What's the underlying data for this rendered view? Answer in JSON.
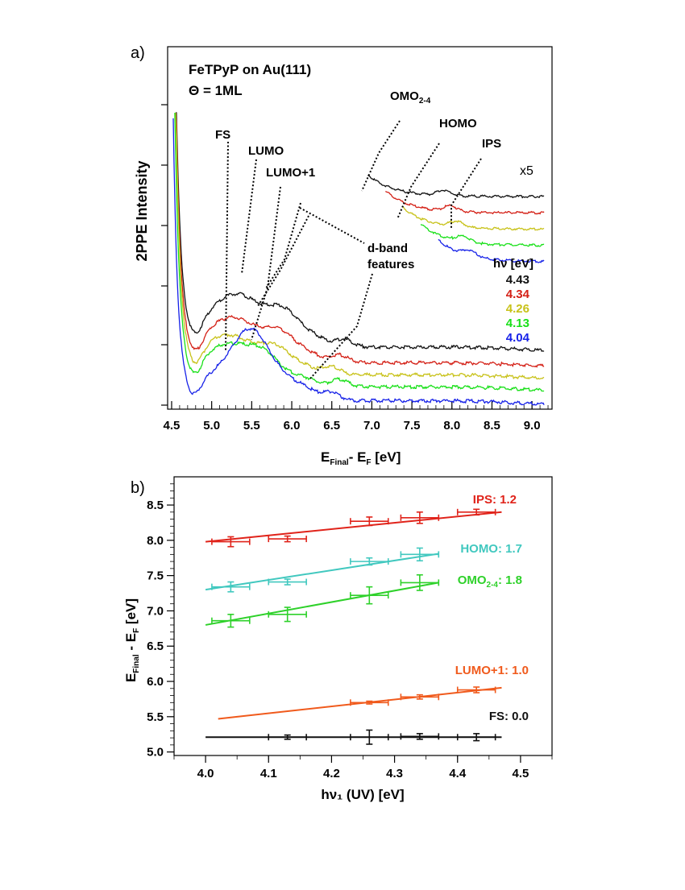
{
  "chart_data": [
    {
      "panel": "a)",
      "type": "line",
      "title": "FeTPyP on Au(111)",
      "subtitle": "Θ = 1ML",
      "xlabel_main": "E",
      "xlabel_sub1": "Final",
      "xlabel_mid": "- E",
      "xlabel_sub2": "F",
      "xlabel_tail": " [eV]",
      "ylabel": "2PPE Intensity",
      "xlim": [
        4.45,
        9.25
      ],
      "x_ticks": [
        "4.5",
        "5.0",
        "5.5",
        "6.0",
        "6.5",
        "7.0",
        "7.5",
        "8.0",
        "8.5",
        "9.0"
      ],
      "legend_title": "hν [eV]",
      "scale_label": "x5",
      "series": [
        {
          "name": "4.43",
          "color": "#111111",
          "offset": 4.8,
          "amp": 1.0,
          "cutoff": 4.55,
          "fs": 5.3,
          "lumo": 5.9,
          "dband": 6.35,
          "step": 6.4,
          "tail_end": 9.15
        },
        {
          "name": "4.34",
          "color": "#d42016",
          "offset": 3.5,
          "amp": 0.85,
          "cutoff": 4.55,
          "fs": 5.25,
          "lumo": 5.85,
          "dband": 6.3,
          "step": 6.35,
          "tail_end": 9.15
        },
        {
          "name": "4.26",
          "color": "#c8c21a",
          "offset": 2.5,
          "amp": 0.75,
          "cutoff": 4.55,
          "fs": 5.2,
          "lumo": 5.8,
          "dband": 6.2,
          "step": 6.3,
          "tail_end": 9.15
        },
        {
          "name": "4.13",
          "color": "#19e019",
          "offset": 1.5,
          "amp": 0.8,
          "cutoff": 4.54,
          "fs": 5.2,
          "lumo": 5.65,
          "dband": 6.3,
          "step": 6.3,
          "tail_end": 9.15
        },
        {
          "name": "4.04",
          "color": "#1722e8",
          "offset": 0.35,
          "amp": 1.0,
          "cutoff": 4.52,
          "fs": 5.45,
          "lumo": 5.5,
          "dband": 6.2,
          "step": 6.3,
          "tail_end": 9.15
        }
      ],
      "annotations": {
        "fs": "FS",
        "lumo": "LUMO",
        "lumo1": "LUMO+1",
        "omo_main": "OMO",
        "omo_sub": "2-4",
        "homo": "HOMO",
        "ips": "IPS",
        "dband_line1": "d-band",
        "dband_line2": "features"
      }
    },
    {
      "panel": "b)",
      "type": "scatter",
      "xlabel": "hν₁ (UV) [eV]",
      "ylabel_main": "E",
      "ylabel_sub1": "Final",
      "ylabel_mid": " - E",
      "ylabel_sub2": "F",
      "ylabel_tail": " [eV]",
      "xlim": [
        3.95,
        4.55
      ],
      "ylim": [
        4.95,
        8.9
      ],
      "x_ticks": [
        "4.0",
        "4.1",
        "4.2",
        "4.3",
        "4.4",
        "4.5"
      ],
      "y_ticks": [
        "5.0",
        "5.5",
        "6.0",
        "6.5",
        "7.0",
        "7.5",
        "8.0",
        "8.5"
      ],
      "series": [
        {
          "name": "IPS",
          "label_main": "IPS",
          "label_sub": "",
          "label_tail": ": 1.2",
          "color": "#e0231a",
          "x": [
            4.04,
            4.13,
            4.26,
            4.34,
            4.43
          ],
          "y": [
            7.98,
            8.02,
            8.27,
            8.32,
            8.4
          ],
          "yerr": [
            0.07,
            0.04,
            0.06,
            0.08,
            0.04
          ],
          "fit": [
            [
              4.0,
              7.98
            ],
            [
              4.47,
              8.4
            ]
          ]
        },
        {
          "name": "HOMO",
          "label_main": "HOMO",
          "label_sub": "",
          "label_tail": ": 1.7",
          "color": "#41c8bf",
          "x": [
            4.04,
            4.13,
            4.26,
            4.34
          ],
          "y": [
            7.34,
            7.41,
            7.7,
            7.8
          ],
          "yerr": [
            0.07,
            0.04,
            0.05,
            0.09
          ],
          "fit": [
            [
              4.0,
              7.3
            ],
            [
              4.37,
              7.81
            ]
          ]
        },
        {
          "name": "OMO2-4",
          "label_main": "OMO",
          "label_sub": "2-4",
          "label_tail": ": 1.8",
          "color": "#2ed12a",
          "x": [
            4.04,
            4.13,
            4.26,
            4.34
          ],
          "y": [
            6.86,
            6.95,
            7.22,
            7.4
          ],
          "yerr": [
            0.09,
            0.1,
            0.12,
            0.11
          ],
          "fit": [
            [
              4.0,
              6.8
            ],
            [
              4.37,
              7.4
            ]
          ]
        },
        {
          "name": "LUMO+1",
          "label_main": "LUMO+1",
          "label_sub": "",
          "label_tail": ": 1.0",
          "color": "#f05a1c",
          "x": [
            4.26,
            4.34,
            4.43
          ],
          "y": [
            5.7,
            5.78,
            5.88
          ],
          "yerr": [
            0.02,
            0.03,
            0.04
          ],
          "fit": [
            [
              4.02,
              5.47
            ],
            [
              4.47,
              5.91
            ]
          ]
        },
        {
          "name": "FS",
          "label_main": "FS",
          "label_sub": "",
          "label_tail": ": 0.0",
          "color": "#111111",
          "x": [
            4.13,
            4.26,
            4.34,
            4.43
          ],
          "y": [
            5.21,
            5.21,
            5.22,
            5.21
          ],
          "yerr": [
            0.03,
            0.1,
            0.04,
            0.05
          ],
          "fit": [
            [
              4.0,
              5.21
            ],
            [
              4.47,
              5.21
            ]
          ]
        }
      ],
      "xerr": 0.03
    }
  ]
}
